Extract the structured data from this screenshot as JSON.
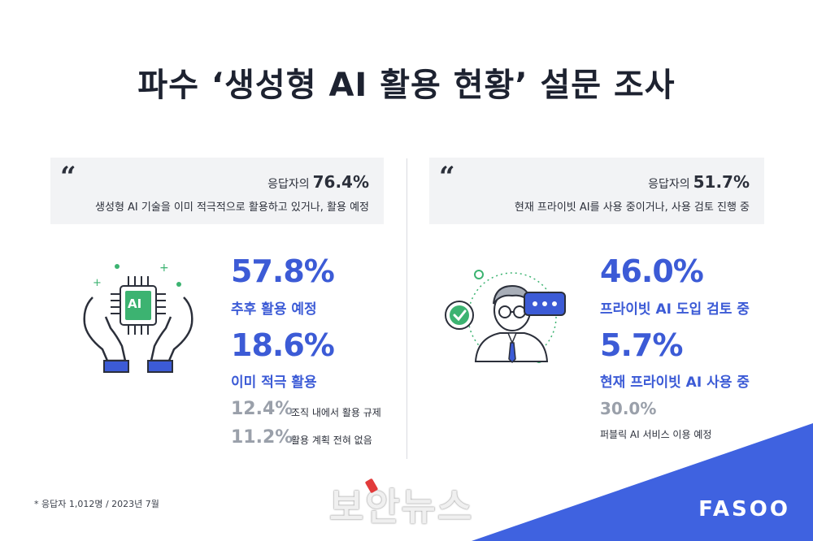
{
  "title": "파수 ‘생성형 AI 활용 현황’ 설문 조사",
  "left": {
    "quote_mark": "“",
    "quote_prefix": "응답자의",
    "quote_pct": "76.4%",
    "quote_desc": "생성형 AI 기술을 이미 적극적으로 활용하고 있거나, 활용 예정",
    "icon_chip_label": "AI",
    "stats_big": [
      {
        "value": "57.8%",
        "label": "추후 활용 예정"
      },
      {
        "value": "18.6%",
        "label": "이미 적극 활용"
      }
    ],
    "stats_small": [
      {
        "value": "12.4%",
        "label": "조직 내에서 활용 규제"
      },
      {
        "value": "11.2%",
        "label": "활용 계획 전혀 없음"
      }
    ]
  },
  "right": {
    "quote_mark": "“",
    "quote_prefix": "응답자의",
    "quote_pct": "51.7%",
    "quote_desc": "현재 프라이빗 AI를 사용 중이거나, 사용 검토 진행 중",
    "stats_big": [
      {
        "value": "46.0%",
        "label": "프라이빗 AI 도입 검토 중"
      },
      {
        "value": "5.7%",
        "label": "현재 프라이빗 AI 사용 중"
      }
    ],
    "stats_small": [
      {
        "value": "30.0%",
        "label": "퍼블릭 AI 서비스 이용 예정"
      }
    ]
  },
  "footnote": "* 응답자 1,012명 / 2023년 7월",
  "brand": "FASOO",
  "watermark": "보안뉴스",
  "colors": {
    "accent": "#3c5bd6",
    "corner": "#3f62e0",
    "muted": "#9aa0aa",
    "box": "#f2f3f5"
  }
}
